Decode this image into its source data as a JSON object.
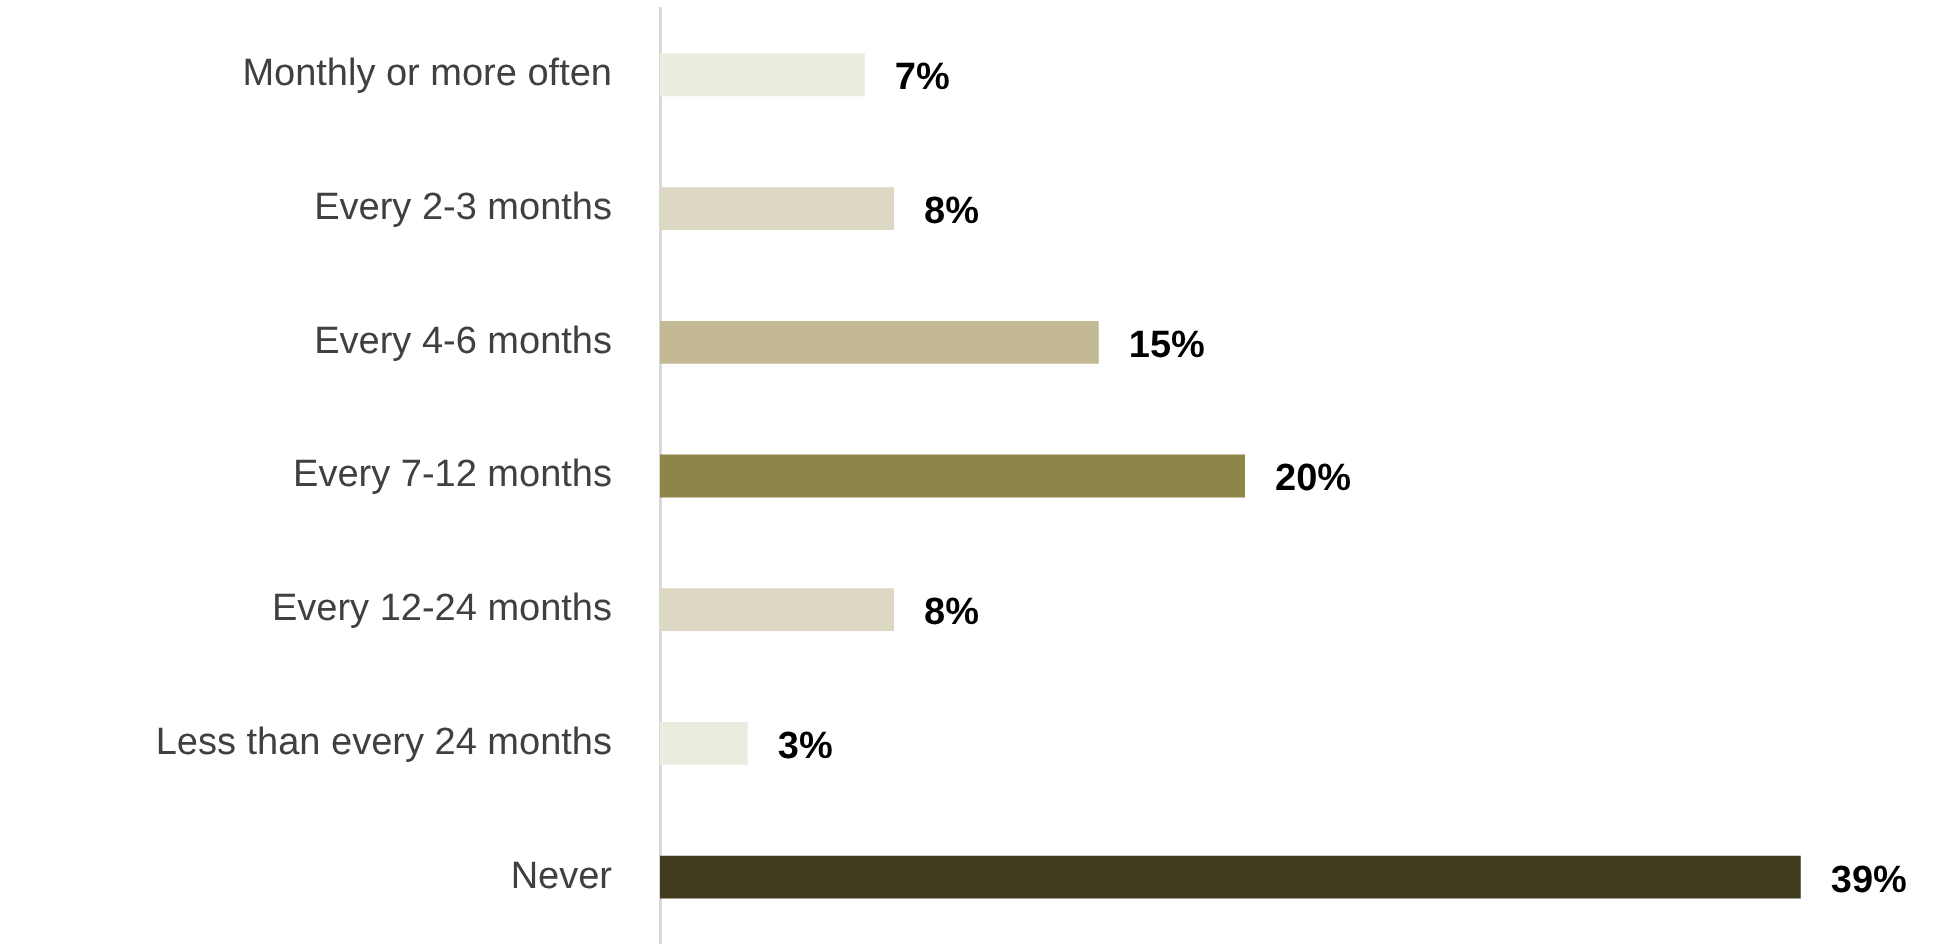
{
  "chart_data": {
    "type": "bar",
    "orientation": "horizontal",
    "categories": [
      "Monthly or more often",
      "Every 2-3 months",
      "Every 4-6 months",
      "Every 7-12 months",
      "Every 12-24 months",
      "Less than every 24 months",
      "Never"
    ],
    "values": [
      7,
      8,
      15,
      20,
      8,
      3,
      39
    ],
    "colors": [
      "#ecebe0",
      "#ddd8c4",
      "#c3ba95",
      "#8e8549",
      "#ddd8c4",
      "#ecebe0",
      "#403b1d"
    ],
    "value_labels": [
      "7%",
      "8%",
      "15%",
      "20%",
      "8%",
      "3%",
      "39%"
    ],
    "tick_labels": "y"
  }
}
